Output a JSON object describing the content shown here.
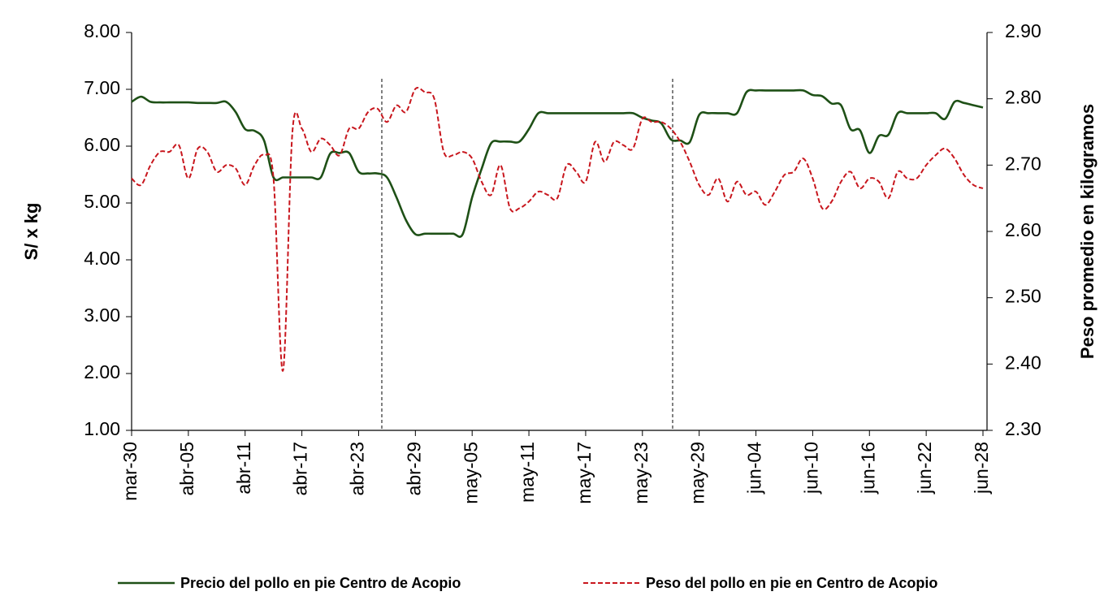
{
  "chart_data": {
    "type": "line",
    "ylabel": "S/  x  kg",
    "y2label": "Peso promedio en kilogramos",
    "categories": [
      "mar-30",
      null,
      null,
      null,
      null,
      null,
      "abr-05",
      null,
      null,
      null,
      null,
      null,
      "abr-11",
      null,
      null,
      null,
      null,
      null,
      "abr-17",
      null,
      null,
      null,
      null,
      null,
      "abr-23",
      null,
      null,
      null,
      null,
      null,
      "abr-29",
      null,
      null,
      null,
      null,
      null,
      "may-05",
      null,
      null,
      null,
      null,
      null,
      "may-11",
      null,
      null,
      null,
      null,
      null,
      "may-17",
      null,
      null,
      null,
      null,
      null,
      "may-23",
      null,
      null,
      null,
      null,
      null,
      "may-29",
      null,
      null,
      null,
      null,
      null,
      "jun-04",
      null,
      null,
      null,
      null,
      null,
      "jun-10",
      null,
      null,
      null,
      null,
      null,
      "jun-16",
      null,
      null,
      null,
      null,
      null,
      "jun-22",
      null,
      null,
      null,
      null,
      null,
      "jun-28"
    ],
    "series": [
      {
        "name": "Precio del pollo en pie Centro de Acopio",
        "color": "#1e5016",
        "dash": false,
        "values": [
          6.78,
          6.87,
          6.78,
          6.77,
          6.77,
          6.77,
          6.77,
          6.76,
          6.76,
          6.76,
          6.78,
          6.6,
          6.3,
          6.27,
          6.1,
          5.45,
          5.45,
          5.45,
          5.45,
          5.45,
          5.45,
          5.87,
          5.88,
          5.88,
          5.55,
          5.52,
          5.52,
          5.45,
          5.1,
          4.7,
          4.45,
          4.46,
          4.46,
          4.46,
          4.46,
          4.45,
          5.1,
          5.6,
          6.05,
          6.08,
          6.08,
          6.08,
          6.3,
          6.58,
          6.58,
          6.58,
          6.58,
          6.58,
          6.58,
          6.58,
          6.58,
          6.58,
          6.58,
          6.58,
          6.5,
          6.45,
          6.4,
          6.12,
          6.1,
          6.07,
          6.55,
          6.58,
          6.58,
          6.58,
          6.58,
          6.95,
          6.98,
          6.98,
          6.98,
          6.98,
          6.98,
          6.98,
          6.9,
          6.88,
          6.75,
          6.72,
          6.3,
          6.28,
          5.88,
          6.18,
          6.2,
          6.58,
          6.58,
          6.58,
          6.58,
          6.58,
          6.48,
          6.78,
          6.76,
          6.72,
          6.68
        ]
      },
      {
        "name": "Peso del pollo en pie en Centro de Acopio",
        "color": "#c8161d",
        "dash": true,
        "axis": "y2",
        "values": [
          2.68,
          2.67,
          2.7,
          2.72,
          2.72,
          2.73,
          2.68,
          2.725,
          2.72,
          2.69,
          2.7,
          2.695,
          2.67,
          2.7,
          2.715,
          2.68,
          2.39,
          2.75,
          2.755,
          2.72,
          2.74,
          2.73,
          2.715,
          2.755,
          2.755,
          2.78,
          2.785,
          2.765,
          2.79,
          2.78,
          2.815,
          2.81,
          2.8,
          2.72,
          2.715,
          2.72,
          2.71,
          2.675,
          2.655,
          2.7,
          2.635,
          2.635,
          2.645,
          2.66,
          2.655,
          2.65,
          2.7,
          2.69,
          2.675,
          2.735,
          2.705,
          2.735,
          2.73,
          2.725,
          2.77,
          2.765,
          2.765,
          2.755,
          2.735,
          2.705,
          2.67,
          2.655,
          2.68,
          2.645,
          2.675,
          2.655,
          2.66,
          2.64,
          2.66,
          2.685,
          2.69,
          2.71,
          2.68,
          2.635,
          2.645,
          2.675,
          2.69,
          2.665,
          2.68,
          2.675,
          2.65,
          2.69,
          2.68,
          2.68,
          2.7,
          2.715,
          2.725,
          2.71,
          2.685,
          2.67,
          2.665
        ]
      }
    ],
    "ylim": [
      1,
      8
    ],
    "yticks": [
      {
        "value": 1,
        "label": "1.00"
      },
      {
        "value": 2,
        "label": "2.00"
      },
      {
        "value": 3,
        "label": "3.00"
      },
      {
        "value": 4,
        "label": "4.00"
      },
      {
        "value": 5,
        "label": "5.00"
      },
      {
        "value": 6,
        "label": "6.00"
      },
      {
        "value": 7,
        "label": "7.00"
      },
      {
        "value": 8,
        "label": "8.00"
      }
    ],
    "y2lim": [
      2.3,
      2.9
    ],
    "y2ticks": [
      {
        "value": 2.3,
        "label": "2.30"
      },
      {
        "value": 2.4,
        "label": "2.40"
      },
      {
        "value": 2.5,
        "label": "2.50"
      },
      {
        "value": 2.6,
        "label": "2.60"
      },
      {
        "value": 2.7,
        "label": "2.70"
      },
      {
        "value": 2.8,
        "label": "2.80"
      },
      {
        "value": 2.9,
        "label": "2.90"
      }
    ],
    "grid": false,
    "legend": "bottom"
  }
}
